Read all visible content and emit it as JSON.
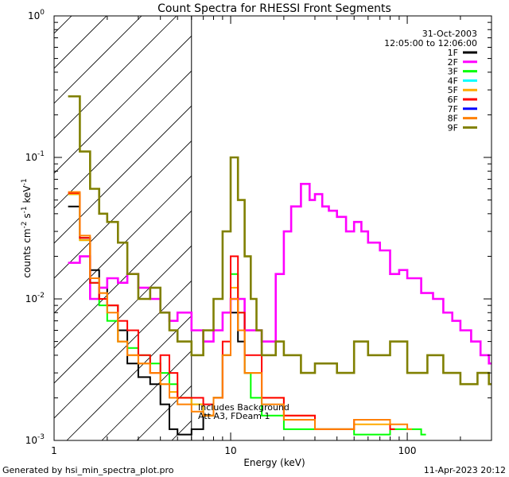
{
  "chart_data": {
    "type": "line",
    "title": "Count Spectra for RHESSI Front Segments",
    "xlabel": "Energy (keV)",
    "ylabel_main": "counts cm",
    "ylabel_exp1": "-2",
    "ylabel_s": " s",
    "ylabel_exp2": "-1",
    "ylabel_kev": " keV",
    "ylabel_exp3": "-1",
    "xscale": "log",
    "yscale": "log",
    "xlim": [
      1,
      300
    ],
    "ylim": [
      0.001,
      1
    ],
    "xticks": [
      {
        "v": 1,
        "label": "1"
      },
      {
        "v": 10,
        "label": "10"
      },
      {
        "v": 100,
        "label": "100"
      }
    ],
    "yticks": [
      {
        "v": 1,
        "base": "10",
        "exp": "0"
      },
      {
        "v": 0.1,
        "base": "10",
        "exp": "-1"
      },
      {
        "v": 0.01,
        "base": "10",
        "exp": "-2"
      },
      {
        "v": 0.001,
        "base": "10",
        "exp": "-3"
      }
    ],
    "hatch_region_keV": [
      1,
      6
    ],
    "date": "31-Oct-2003",
    "time_range": "12:05:00 to 12:06:00",
    "annotation_line1": "Includes Background",
    "annotation_line2": "Att A3, FDeam 1",
    "footer_left": "Generated by hsi_min_spectra_plot.pro",
    "footer_right": "11-Apr-2023 20:12",
    "series": [
      {
        "name": "1F",
        "color": "#000000",
        "x": [
          1.2,
          1.4,
          1.6,
          1.8,
          2.0,
          2.3,
          2.6,
          3.0,
          3.5,
          4.0,
          4.5,
          5.0,
          6.0,
          7.0,
          8.0,
          9.0,
          10.0,
          11.0,
          12.0
        ],
        "y": [
          0.045,
          0.027,
          0.016,
          0.012,
          0.009,
          0.006,
          0.0035,
          0.0028,
          0.0025,
          0.0018,
          0.0012,
          0.0011,
          0.0012,
          0.0015,
          0.002,
          0.004,
          0.008,
          0.005,
          0.003
        ]
      },
      {
        "name": "2F",
        "color": "#ff00ff",
        "x": [
          1.2,
          1.4,
          1.6,
          1.8,
          2.0,
          2.3,
          2.6,
          3.0,
          3.5,
          4.0,
          4.5,
          5.0,
          6.0,
          7.0,
          8.0,
          9.0,
          10.0,
          12.0,
          15.0,
          18.0,
          20.0,
          22.0,
          25.0,
          28.0,
          30.0,
          33.0,
          36.0,
          40.0,
          45.0,
          50.0,
          55.0,
          60.0,
          70.0,
          80.0,
          90.0,
          100.0,
          120.0,
          140.0,
          160.0,
          180.0,
          200.0,
          230.0,
          260.0,
          290.0
        ],
        "y": [
          0.018,
          0.02,
          0.01,
          0.012,
          0.014,
          0.013,
          0.015,
          0.012,
          0.01,
          0.008,
          0.007,
          0.008,
          0.006,
          0.005,
          0.006,
          0.008,
          0.01,
          0.006,
          0.005,
          0.015,
          0.03,
          0.045,
          0.065,
          0.05,
          0.055,
          0.045,
          0.042,
          0.038,
          0.03,
          0.035,
          0.03,
          0.025,
          0.022,
          0.015,
          0.016,
          0.014,
          0.011,
          0.01,
          0.008,
          0.007,
          0.006,
          0.005,
          0.004,
          0.0035
        ]
      },
      {
        "name": "3F",
        "color": "#00ff00",
        "x": [
          1.2,
          1.4,
          1.6,
          1.8,
          2.0,
          2.3,
          2.6,
          3.0,
          3.5,
          4.0,
          4.5,
          5.0,
          6.0,
          7.0,
          8.0,
          9.0,
          10.0,
          11.0,
          12.0,
          13.0,
          15.0,
          20.0,
          30.0,
          50.0,
          80.0,
          120.0
        ],
        "y": [
          0.055,
          0.026,
          0.013,
          0.009,
          0.007,
          0.005,
          0.0045,
          0.004,
          0.0035,
          0.003,
          0.0025,
          0.002,
          0.0018,
          0.0015,
          0.002,
          0.004,
          0.015,
          0.008,
          0.003,
          0.002,
          0.0015,
          0.0012,
          0.0012,
          0.0011,
          0.0012,
          0.0011
        ]
      },
      {
        "name": "4F",
        "color": "#00ffff",
        "x": [],
        "y": []
      },
      {
        "name": "5F",
        "color": "#ffaa00",
        "x": [
          1.2,
          1.4,
          1.6,
          1.8,
          2.0,
          2.3,
          2.6,
          3.0,
          3.5,
          4.0,
          4.5,
          5.0,
          6.0,
          7.0,
          8.0,
          9.0,
          10.0,
          11.0,
          12.0,
          15.0,
          20.0,
          30.0,
          50.0,
          80.0
        ],
        "y": [
          0.055,
          0.026,
          0.014,
          0.011,
          0.009,
          0.005,
          0.004,
          0.0035,
          0.003,
          0.0025,
          0.0022,
          0.002,
          0.0018,
          0.0015,
          0.002,
          0.004,
          0.012,
          0.006,
          0.003,
          0.002,
          0.0015,
          0.0012,
          0.0013,
          0.0012
        ]
      },
      {
        "name": "6F",
        "color": "#ff0000",
        "x": [
          1.2,
          1.4,
          1.6,
          1.8,
          2.0,
          2.3,
          2.6,
          3.0,
          3.5,
          4.0,
          4.5,
          5.0,
          6.0,
          7.0,
          8.0,
          9.0,
          10.0,
          11.0,
          12.0,
          15.0,
          20.0,
          30.0,
          50.0,
          80.0
        ],
        "y": [
          0.056,
          0.027,
          0.013,
          0.01,
          0.009,
          0.007,
          0.006,
          0.004,
          0.003,
          0.004,
          0.003,
          0.002,
          0.002,
          0.0018,
          0.002,
          0.005,
          0.02,
          0.008,
          0.004,
          0.002,
          0.0015,
          0.0012,
          0.0014,
          0.0012
        ]
      },
      {
        "name": "7F",
        "color": "#0000ff",
        "x": [],
        "y": []
      },
      {
        "name": "8F",
        "color": "#ff8000",
        "x": [
          1.2,
          1.4,
          1.6,
          1.8,
          2.0,
          2.3,
          2.6,
          3.0,
          3.5,
          4.0,
          4.5,
          5.0,
          6.0,
          7.0,
          8.0,
          9.0,
          10.0,
          11.0,
          12.0,
          15.0,
          20.0,
          30.0,
          50.0,
          80.0,
          100.0
        ],
        "y": [
          0.057,
          0.028,
          0.014,
          0.011,
          0.008,
          0.005,
          0.004,
          0.0035,
          0.003,
          0.0025,
          0.002,
          0.0018,
          0.0016,
          0.0015,
          0.002,
          0.004,
          0.01,
          0.006,
          0.003,
          0.0018,
          0.0014,
          0.0012,
          0.0014,
          0.0013,
          0.0012
        ]
      },
      {
        "name": "9F",
        "color": "#808000",
        "x": [
          1.2,
          1.4,
          1.6,
          1.8,
          2.0,
          2.3,
          2.6,
          3.0,
          3.5,
          4.0,
          4.5,
          5.0,
          6.0,
          7.0,
          8.0,
          9.0,
          10.0,
          11.0,
          12.0,
          13.0,
          14.0,
          15.0,
          18.0,
          20.0,
          25.0,
          30.0,
          40.0,
          50.0,
          60.0,
          80.0,
          100.0,
          130.0,
          160.0,
          200.0,
          250.0,
          290.0
        ],
        "y": [
          0.27,
          0.11,
          0.06,
          0.04,
          0.035,
          0.025,
          0.015,
          0.01,
          0.012,
          0.008,
          0.006,
          0.005,
          0.004,
          0.006,
          0.01,
          0.03,
          0.1,
          0.05,
          0.02,
          0.01,
          0.006,
          0.004,
          0.005,
          0.004,
          0.003,
          0.0035,
          0.003,
          0.005,
          0.004,
          0.005,
          0.003,
          0.004,
          0.003,
          0.0025,
          0.003,
          0.0025
        ]
      }
    ]
  }
}
